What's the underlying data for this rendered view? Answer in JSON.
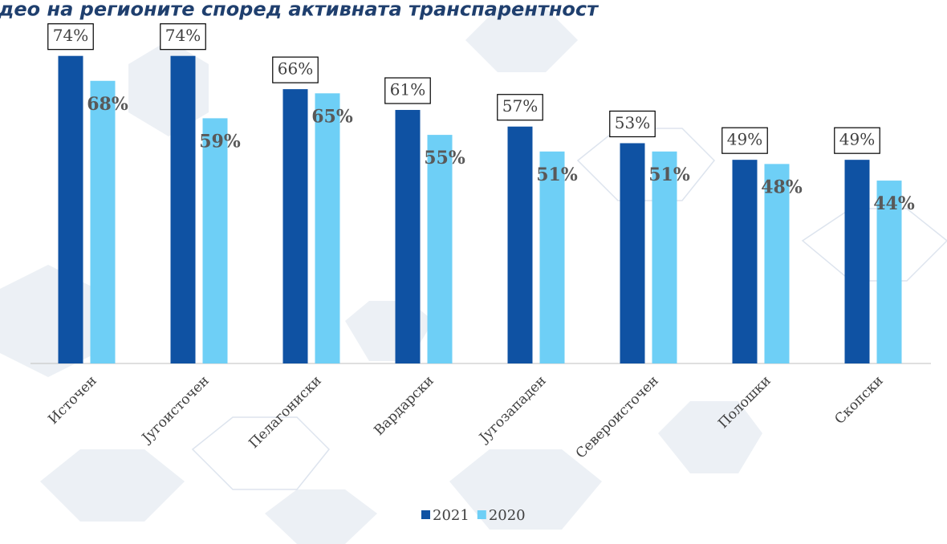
{
  "chart_data": {
    "type": "bar",
    "title": "део на регионите според активната транспарентност",
    "categories": [
      "Источен",
      "Југоисточен",
      "Пелагониски",
      "Вардарски",
      "Југозападен",
      "Североисточен",
      "Полошки",
      "Скопски"
    ],
    "series": [
      {
        "name": "2021",
        "color": "#0f52a3",
        "values": [
          74,
          74,
          66,
          61,
          57,
          53,
          49,
          49
        ],
        "value_labels": [
          "74%",
          "74%",
          "66%",
          "61%",
          "57%",
          "53%",
          "49%",
          "49%"
        ]
      },
      {
        "name": "2020",
        "color": "#6ecff6",
        "values": [
          68,
          59,
          65,
          55,
          51,
          51,
          48,
          44
        ],
        "value_labels": [
          "68%",
          "59%",
          "65%",
          "55%",
          "51%",
          "51%",
          "48%",
          "44%"
        ]
      }
    ]
  }
}
